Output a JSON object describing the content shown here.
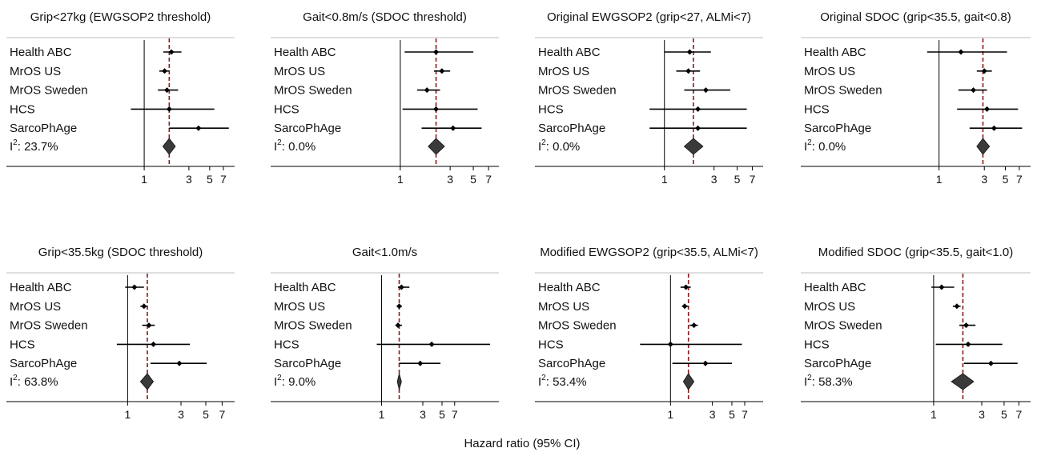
{
  "figure": {
    "xlabel": "Hazard ratio (95% CI)",
    "studies": [
      "Health ABC",
      "MrOS US",
      "MrOS Sweden",
      "HCS",
      "SarcoPhAge"
    ],
    "colors": {
      "ci": "#000000",
      "diamond": "#3a3a3a",
      "ref_line": "#8b1a1a",
      "axis": "#000000"
    }
  },
  "chart_data": [
    {
      "type": "forest",
      "title": "Grip<27kg (EWGSOP2 threshold)",
      "x_scale": "log",
      "ticks": [
        1,
        3,
        5,
        7
      ],
      "xlim": [
        0.42,
        8.2
      ],
      "i2_label": "I",
      "i2_sup": "2",
      "i2_value": ": 23.7%",
      "rows": [
        {
          "study": "Health ABC",
          "hr": 1.95,
          "lo": 1.6,
          "hi": 2.5
        },
        {
          "study": "MrOS US",
          "hr": 1.65,
          "lo": 1.45,
          "hi": 1.85
        },
        {
          "study": "MrOS Sweden",
          "hr": 1.75,
          "lo": 1.4,
          "hi": 2.3
        },
        {
          "study": "HCS",
          "hr": 1.85,
          "lo": 0.72,
          "hi": 5.6
        },
        {
          "study": "SarcoPhAge",
          "hr": 3.8,
          "lo": 1.85,
          "hi": 8.0
        }
      ],
      "pooled": {
        "hr": 1.85,
        "lo": 1.58,
        "hi": 2.15
      },
      "ref_line": 1.85
    },
    {
      "type": "forest",
      "title": "Gait<0.8m/s (SDOC threshold)",
      "x_scale": "log",
      "ticks": [
        1,
        3,
        5,
        7
      ],
      "xlim": [
        0.55,
        7.9
      ],
      "i2_label": "I",
      "i2_sup": "2",
      "i2_value": ": 0.0%",
      "rows": [
        {
          "study": "Health ABC",
          "hr": 2.2,
          "lo": 1.1,
          "hi": 5.0
        },
        {
          "study": "MrOS US",
          "hr": 2.5,
          "lo": 2.1,
          "hi": 3.0
        },
        {
          "study": "MrOS Sweden",
          "hr": 1.8,
          "lo": 1.45,
          "hi": 2.4
        },
        {
          "study": "HCS",
          "hr": 2.2,
          "lo": 1.05,
          "hi": 5.5
        },
        {
          "study": "SarcoPhAge",
          "hr": 3.2,
          "lo": 1.6,
          "hi": 6.0
        }
      ],
      "pooled": {
        "hr": 2.2,
        "lo": 1.85,
        "hi": 2.65
      },
      "ref_line": 2.2
    },
    {
      "type": "forest",
      "title": "Original EWGSOP2 (grip<27, ALMi<7)",
      "x_scale": "log",
      "ticks": [
        1,
        3,
        5,
        7
      ],
      "xlim": [
        0.55,
        8.0
      ],
      "i2_label": "I",
      "i2_sup": "2",
      "i2_value": ": 0.0%",
      "rows": [
        {
          "study": "Health ABC",
          "hr": 1.75,
          "lo": 1.0,
          "hi": 2.8
        },
        {
          "study": "MrOS US",
          "hr": 1.7,
          "lo": 1.3,
          "hi": 2.2
        },
        {
          "study": "MrOS Sweden",
          "hr": 2.5,
          "lo": 1.55,
          "hi": 4.3
        },
        {
          "study": "HCS",
          "hr": 2.1,
          "lo": 0.72,
          "hi": 6.2
        },
        {
          "study": "SarcoPhAge",
          "hr": 2.1,
          "lo": 0.72,
          "hi": 6.2
        }
      ],
      "pooled": {
        "hr": 1.9,
        "lo": 1.55,
        "hi": 2.35
      },
      "ref_line": 1.9
    },
    {
      "type": "forest",
      "title": "Original SDOC (grip<35.5, gait<0.8)",
      "x_scale": "log",
      "ticks": [
        1,
        3,
        5,
        7
      ],
      "xlim": [
        0.42,
        8.2
      ],
      "i2_label": "I",
      "i2_sup": "2",
      "i2_value": ": 0.0%",
      "rows": [
        {
          "study": "Health ABC",
          "hr": 1.7,
          "lo": 0.75,
          "hi": 5.2
        },
        {
          "study": "MrOS US",
          "hr": 3.0,
          "lo": 2.5,
          "hi": 3.6
        },
        {
          "study": "MrOS Sweden",
          "hr": 2.3,
          "lo": 1.6,
          "hi": 3.2
        },
        {
          "study": "HCS",
          "hr": 3.2,
          "lo": 1.55,
          "hi": 6.8
        },
        {
          "study": "SarcoPhAge",
          "hr": 3.8,
          "lo": 2.1,
          "hi": 7.5
        }
      ],
      "pooled": {
        "hr": 2.9,
        "lo": 2.5,
        "hi": 3.4
      },
      "ref_line": 2.9
    },
    {
      "type": "forest",
      "title": "Grip<35.5kg (SDOC threshold)",
      "x_scale": "log",
      "ticks": [
        1,
        3,
        5,
        7
      ],
      "xlim": [
        0.68,
        8.2
      ],
      "i2_label": "I",
      "i2_sup": "2",
      "i2_value": ": 63.8%",
      "rows": [
        {
          "study": "Health ABC",
          "hr": 1.15,
          "lo": 0.95,
          "hi": 1.4
        },
        {
          "study": "MrOS US",
          "hr": 1.4,
          "lo": 1.3,
          "hi": 1.5
        },
        {
          "study": "MrOS Sweden",
          "hr": 1.55,
          "lo": 1.35,
          "hi": 1.75
        },
        {
          "study": "HCS",
          "hr": 1.7,
          "lo": 0.8,
          "hi": 3.6
        },
        {
          "study": "SarcoPhAge",
          "hr": 2.9,
          "lo": 1.6,
          "hi": 5.1
        }
      ],
      "pooled": {
        "hr": 1.5,
        "lo": 1.3,
        "hi": 1.7
      },
      "ref_line": 1.5
    },
    {
      "type": "forest",
      "title": "Gait<1.0m/s",
      "x_scale": "log",
      "ticks": [
        1,
        3,
        5,
        7
      ],
      "xlim": [
        0.8,
        20
      ],
      "i2_label": "I",
      "i2_sup": "2",
      "i2_value": ": 9.0%",
      "rows": [
        {
          "study": "Health ABC",
          "hr": 1.7,
          "lo": 1.55,
          "hi": 2.1
        },
        {
          "study": "MrOS US",
          "hr": 1.6,
          "lo": 1.5,
          "hi": 1.72
        },
        {
          "study": "MrOS Sweden",
          "hr": 1.55,
          "lo": 1.45,
          "hi": 1.72
        },
        {
          "study": "HCS",
          "hr": 3.8,
          "lo": 0.88,
          "hi": 18.0
        },
        {
          "study": "SarcoPhAge",
          "hr": 2.8,
          "lo": 1.6,
          "hi": 4.8
        }
      ],
      "pooled": {
        "hr": 1.6,
        "lo": 1.52,
        "hi": 1.7
      },
      "ref_line": 1.6
    },
    {
      "type": "forest",
      "title": "Modified EWGSOP2 (grip<35.5, ALMi<7)",
      "x_scale": "log",
      "ticks": [
        1,
        3,
        5,
        7
      ],
      "xlim": [
        0.42,
        10.0
      ],
      "i2_label": "I",
      "i2_sup": "2",
      "i2_value": ": 53.4%",
      "rows": [
        {
          "study": "Health ABC",
          "hr": 1.5,
          "lo": 1.3,
          "hi": 1.7
        },
        {
          "study": "MrOS US",
          "hr": 1.45,
          "lo": 1.35,
          "hi": 1.6
        },
        {
          "study": "MrOS Sweden",
          "hr": 1.85,
          "lo": 1.65,
          "hi": 2.05
        },
        {
          "study": "HCS",
          "hr": 1.0,
          "lo": 0.45,
          "hi": 6.5
        },
        {
          "study": "SarcoPhAge",
          "hr": 2.5,
          "lo": 1.05,
          "hi": 5.0
        }
      ],
      "pooled": {
        "hr": 1.6,
        "lo": 1.4,
        "hi": 1.85
      },
      "ref_line": 1.6
    },
    {
      "type": "forest",
      "title": "Modified SDOC (grip<35.5, gait<1.0)",
      "x_scale": "log",
      "ticks": [
        1,
        3,
        5,
        7
      ],
      "xlim": [
        0.5,
        8.2
      ],
      "i2_label": "I",
      "i2_sup": "2",
      "i2_value": ": 58.3%",
      "rows": [
        {
          "study": "Health ABC",
          "hr": 1.2,
          "lo": 0.95,
          "hi": 1.6
        },
        {
          "study": "MrOS US",
          "hr": 1.7,
          "lo": 1.55,
          "hi": 1.85
        },
        {
          "study": "MrOS Sweden",
          "hr": 2.1,
          "lo": 1.8,
          "hi": 2.6
        },
        {
          "study": "HCS",
          "hr": 2.2,
          "lo": 1.05,
          "hi": 4.8
        },
        {
          "study": "SarcoPhAge",
          "hr": 3.7,
          "lo": 2.0,
          "hi": 6.8
        }
      ],
      "pooled": {
        "hr": 1.95,
        "lo": 1.5,
        "hi": 2.5
      },
      "ref_line": 1.95
    }
  ]
}
